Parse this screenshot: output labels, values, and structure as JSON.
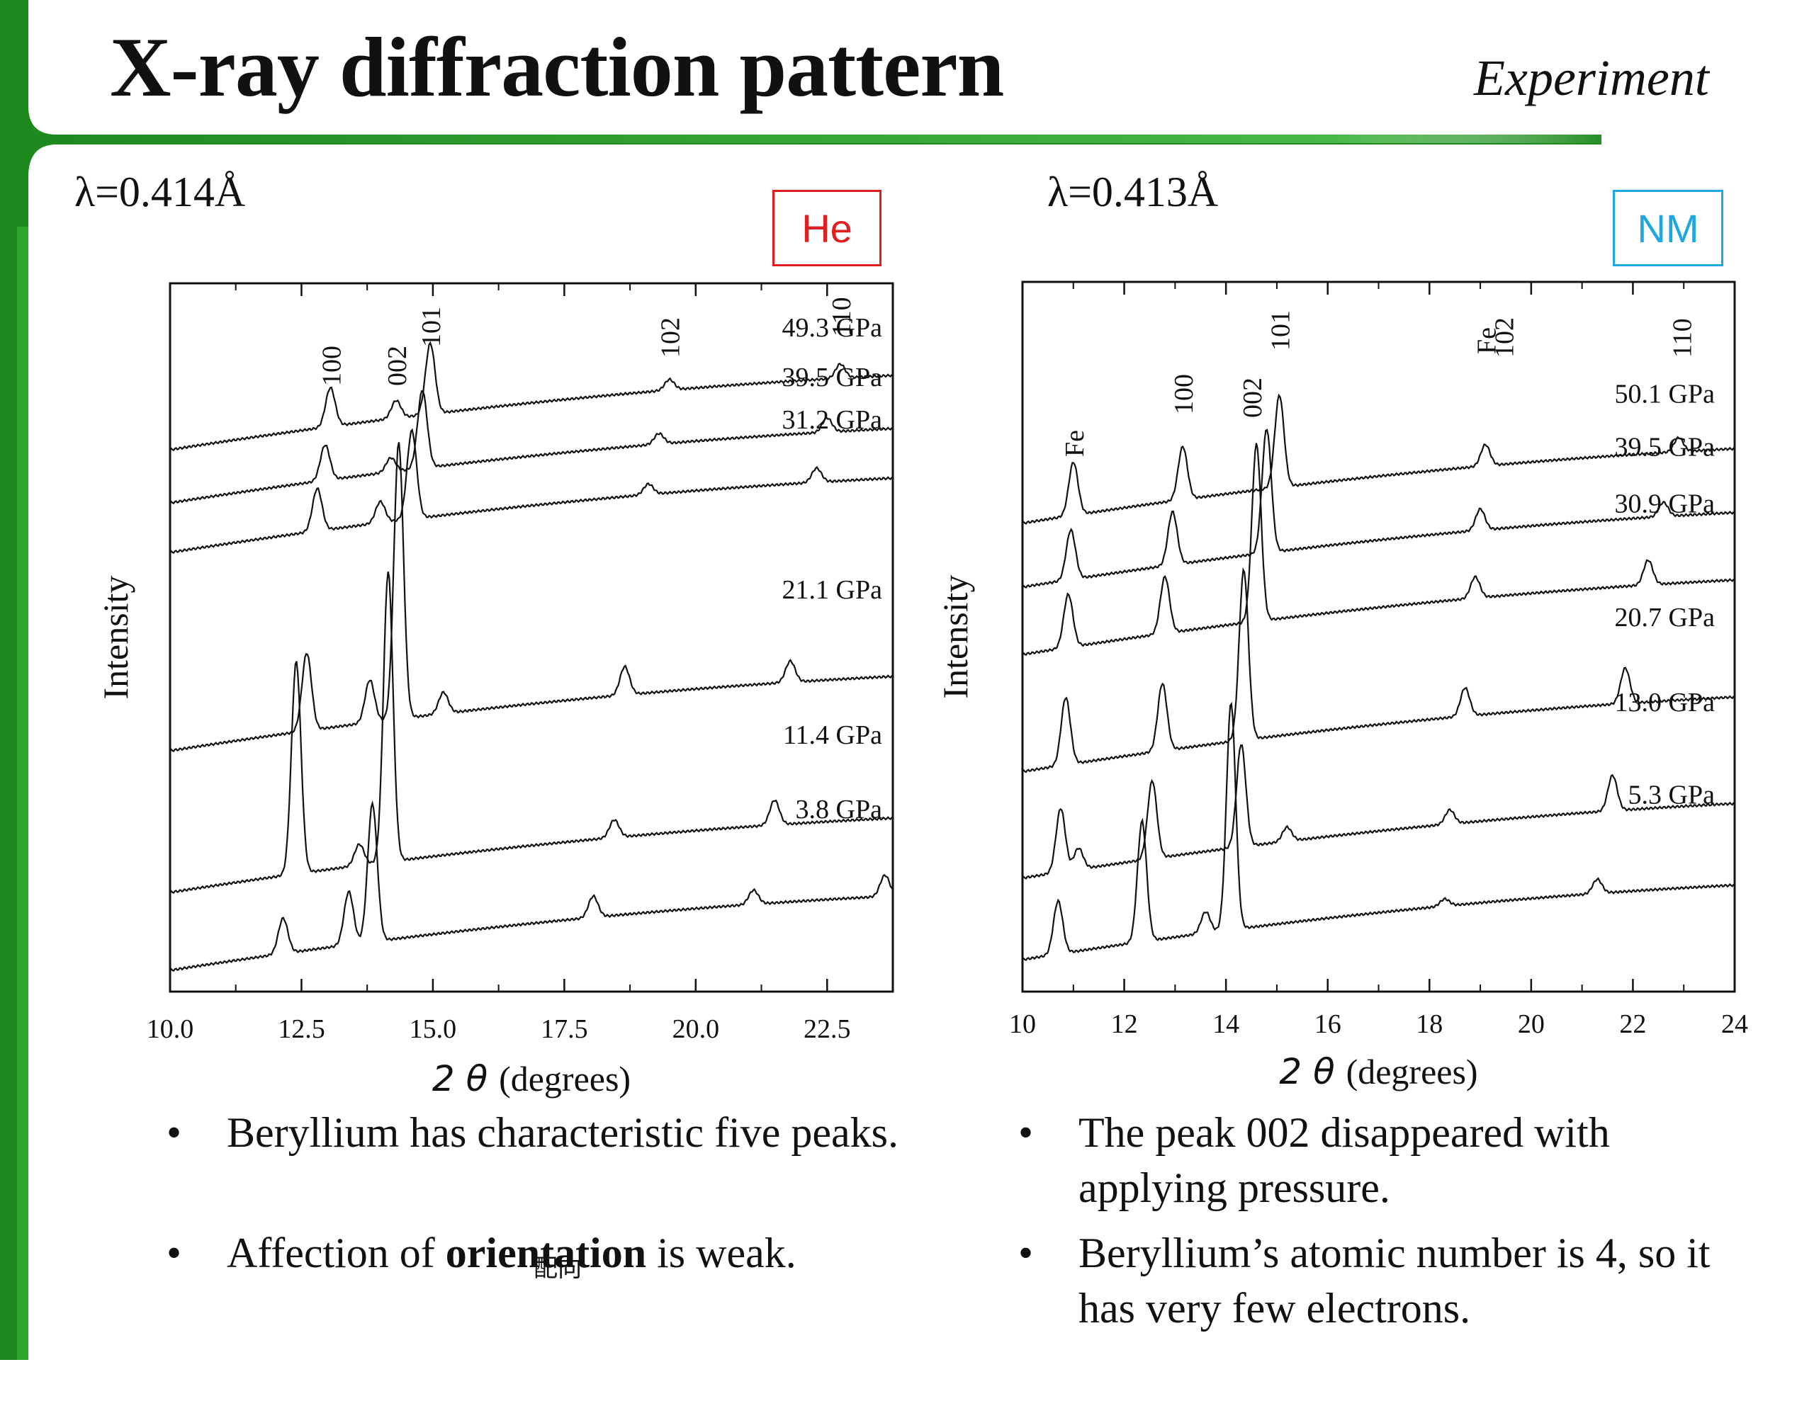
{
  "slide": {
    "title": "X-ray diffraction pattern",
    "tag": "Experiment",
    "colors": {
      "accent_green": "#1e8a1e",
      "he_red": "#e02020",
      "nm_cyan": "#1ea7e0"
    }
  },
  "chart_data": [
    {
      "type": "line",
      "wavelength_label": "λ=0.414Å",
      "medium_label": "He",
      "xlabel_symbol": "2 θ",
      "xlabel_unit": "(degrees)",
      "ylabel": "Intensity",
      "xlim": [
        10.0,
        23.75
      ],
      "xticks": [
        "10.0",
        "12.5",
        "15.0",
        "17.5",
        "20.0",
        "22.5"
      ],
      "peak_labels": [
        {
          "text": "100",
          "x": 13.05
        },
        {
          "text": "002",
          "x": 14.3
        },
        {
          "text": "101",
          "x": 14.95
        },
        {
          "text": "102",
          "x": 19.5
        },
        {
          "text": "110",
          "x": 22.75
        }
      ],
      "series": [
        {
          "name": "49.3 GPa",
          "peaks": [
            [
              13.05,
              0.55
            ],
            [
              14.3,
              0.25
            ],
            [
              14.95,
              1.0
            ],
            [
              19.5,
              0.15
            ],
            [
              22.75,
              0.2
            ]
          ]
        },
        {
          "name": "39.5 GPa",
          "peaks": [
            [
              12.95,
              0.5
            ],
            [
              14.2,
              0.2
            ],
            [
              14.8,
              1.1
            ],
            [
              19.3,
              0.15
            ],
            [
              22.5,
              0.2
            ]
          ]
        },
        {
          "name": "31.2 GPa",
          "peaks": [
            [
              12.8,
              0.6
            ],
            [
              14.0,
              0.3
            ],
            [
              14.6,
              1.25
            ],
            [
              19.1,
              0.15
            ],
            [
              22.3,
              0.2
            ]
          ]
        },
        {
          "name": "21.1 GPa",
          "peaks": [
            [
              12.6,
              1.1
            ],
            [
              13.8,
              0.6
            ],
            [
              14.35,
              3.9
            ],
            [
              15.2,
              0.3
            ],
            [
              18.65,
              0.4
            ],
            [
              21.8,
              0.3
            ]
          ]
        },
        {
          "name": "11.4 GPa",
          "peaks": [
            [
              12.4,
              3.0
            ],
            [
              13.6,
              0.3
            ],
            [
              14.15,
              4.1
            ],
            [
              18.45,
              0.25
            ],
            [
              21.5,
              0.35
            ]
          ]
        },
        {
          "name": "3.8 GPa",
          "peaks": [
            [
              12.15,
              0.5
            ],
            [
              13.4,
              0.75
            ],
            [
              13.85,
              1.95
            ],
            [
              18.05,
              0.3
            ],
            [
              21.1,
              0.2
            ],
            [
              23.6,
              0.3
            ]
          ]
        }
      ]
    },
    {
      "type": "line",
      "wavelength_label": "λ=0.413Å",
      "medium_label": "NM",
      "xlabel_symbol": "2 θ",
      "xlabel_unit": "(degrees)",
      "ylabel": "Intensity",
      "xlim": [
        10,
        24
      ],
      "xticks": [
        "10",
        "12",
        "14",
        "16",
        "18",
        "20",
        "22",
        "24"
      ],
      "peak_labels": [
        {
          "text": "Fe",
          "x": 11.0
        },
        {
          "text": "100",
          "x": 13.15
        },
        {
          "text": "002",
          "x": 14.5
        },
        {
          "text": "101",
          "x": 15.05
        },
        {
          "text": "Fe",
          "x": 19.1
        },
        {
          "text": "102",
          "x": 19.45
        },
        {
          "text": "110",
          "x": 22.95
        }
      ],
      "series": [
        {
          "name": "50.1 GPa",
          "peaks": [
            [
              11.0,
              0.75
            ],
            [
              13.15,
              0.75
            ],
            [
              15.05,
              1.3
            ],
            [
              19.1,
              0.3
            ],
            [
              22.9,
              0.2
            ]
          ]
        },
        {
          "name": "39.5 GPa",
          "peaks": [
            [
              10.95,
              0.7
            ],
            [
              12.95,
              0.75
            ],
            [
              14.8,
              1.75
            ],
            [
              19.0,
              0.3
            ],
            [
              22.6,
              0.2
            ]
          ]
        },
        {
          "name": "30.9 GPa",
          "peaks": [
            [
              10.9,
              0.75
            ],
            [
              12.8,
              0.8
            ],
            [
              14.6,
              2.5
            ],
            [
              18.9,
              0.3
            ],
            [
              22.3,
              0.35
            ]
          ]
        },
        {
          "name": "20.7 GPa",
          "peaks": [
            [
              10.85,
              0.95
            ],
            [
              12.75,
              0.95
            ],
            [
              14.35,
              2.4
            ],
            [
              18.7,
              0.4
            ],
            [
              21.85,
              0.5
            ]
          ]
        },
        {
          "name": "13.0 GPa",
          "peaks": [
            [
              10.75,
              0.9
            ],
            [
              11.1,
              0.3
            ],
            [
              12.55,
              1.1
            ],
            [
              14.3,
              1.45
            ],
            [
              15.2,
              0.2
            ],
            [
              18.4,
              0.2
            ],
            [
              21.6,
              0.5
            ]
          ]
        },
        {
          "name": "5.3 GPa",
          "peaks": [
            [
              10.7,
              0.75
            ],
            [
              12.35,
              1.7
            ],
            [
              13.6,
              0.3
            ],
            [
              14.1,
              3.2
            ],
            [
              18.3,
              0.1
            ],
            [
              21.3,
              0.2
            ]
          ]
        }
      ]
    }
  ],
  "left_notes": {
    "bullet1": "Beryllium has characteristic five peaks.",
    "bullet2_prefix": "Affection of ",
    "bullet2_bold": "orientation",
    "bullet2_suffix": " is weak.",
    "ruby": "配向"
  },
  "right_notes": {
    "bullet1": "The peak 002 disappeared with applying pressure.",
    "bullet2": "Beryllium’s atomic number is 4, so it has very few electrons."
  }
}
